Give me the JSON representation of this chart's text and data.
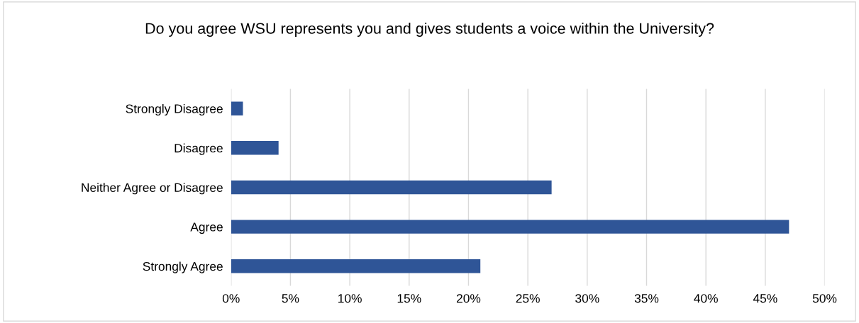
{
  "chart_data": {
    "type": "bar",
    "orientation": "horizontal",
    "title": "Do you agree WSU represents you and gives students a voice within the University?",
    "categories": [
      "Strongly Disagree",
      "Disagree",
      "Neither Agree or Disagree",
      "Agree",
      "Strongly Agree"
    ],
    "values": [
      1,
      4,
      27,
      47,
      21
    ],
    "color": "#2f5597",
    "xlim": [
      0,
      50
    ],
    "xticks": [
      {
        "value": 0,
        "label": "0%"
      },
      {
        "value": 5,
        "label": "5%"
      },
      {
        "value": 10,
        "label": "10%"
      },
      {
        "value": 15,
        "label": "15%"
      },
      {
        "value": 20,
        "label": "20%"
      },
      {
        "value": 25,
        "label": "25%"
      },
      {
        "value": 30,
        "label": "30%"
      },
      {
        "value": 35,
        "label": "35%"
      },
      {
        "value": 40,
        "label": "40%"
      },
      {
        "value": 45,
        "label": "45%"
      },
      {
        "value": 50,
        "label": "50%"
      }
    ],
    "grid": "x",
    "legend": false
  }
}
